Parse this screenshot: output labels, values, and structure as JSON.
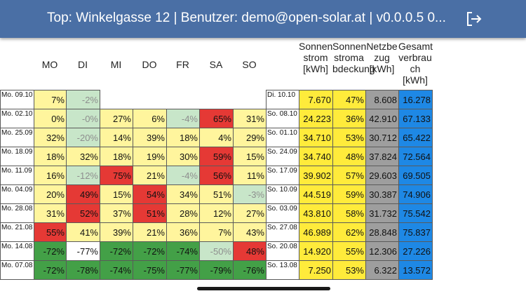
{
  "header": {
    "title": "Top: Winkelgasse 12 | Benutzer: demo@open-solar.at | v0.0.0.5  0...",
    "logout_icon": "logout-icon"
  },
  "day_headers": [
    "MO",
    "DI",
    "MI",
    "DO",
    "FR",
    "SA",
    "SO"
  ],
  "summary_headers": [
    "Sonnen\nstrom\n[kWh]",
    "Sonnen\nstroma\nbdeckung",
    "Netzbe\nzug\n[kWh]",
    "Gesamt\nverbrau\nch\n[kWh]"
  ],
  "colors": {
    "yellow": "#fff59d",
    "green_light": "#c8e6c9",
    "green": "#43a047",
    "red": "#e53935",
    "sun": "#ffeb3b",
    "grey": "#9e9e9e",
    "blue": "#1e88e5",
    "white": "#ffffff"
  },
  "rows": [
    {
      "week": "Mo. 09.10",
      "days": [
        {
          "v": "7%",
          "c": "yellow"
        },
        {
          "v": "-2%",
          "c": "green_light",
          "faded": true
        },
        null,
        null,
        null,
        null,
        null
      ],
      "sum_label": "Di. 10.10",
      "sun": "7.670",
      "cover": "47%",
      "grid": "8.608",
      "total": "16.278"
    },
    {
      "week": "Mo. 02.10",
      "days": [
        {
          "v": "0%",
          "c": "yellow"
        },
        {
          "v": "-0%",
          "c": "green_light",
          "faded": true
        },
        {
          "v": "27%",
          "c": "yellow"
        },
        {
          "v": "6%",
          "c": "yellow"
        },
        {
          "v": "-4%",
          "c": "green_light",
          "faded": true
        },
        {
          "v": "65%",
          "c": "red"
        },
        {
          "v": "31%",
          "c": "yellow"
        }
      ],
      "sum_label": "So. 08.10",
      "sun": "24.223",
      "cover": "36%",
      "grid": "42.910",
      "total": "67.133"
    },
    {
      "week": "Mo. 25.09",
      "days": [
        {
          "v": "32%",
          "c": "yellow"
        },
        {
          "v": "-20%",
          "c": "green_light",
          "faded": true
        },
        {
          "v": "14%",
          "c": "yellow"
        },
        {
          "v": "39%",
          "c": "yellow"
        },
        {
          "v": "18%",
          "c": "yellow"
        },
        {
          "v": "4%",
          "c": "yellow"
        },
        {
          "v": "29%",
          "c": "yellow"
        }
      ],
      "sum_label": "So. 01.10",
      "sun": "34.710",
      "cover": "53%",
      "grid": "30.712",
      "total": "65.422"
    },
    {
      "week": "Mo. 18.09",
      "days": [
        {
          "v": "18%",
          "c": "yellow"
        },
        {
          "v": "32%",
          "c": "yellow"
        },
        {
          "v": "18%",
          "c": "yellow"
        },
        {
          "v": "19%",
          "c": "yellow"
        },
        {
          "v": "30%",
          "c": "yellow"
        },
        {
          "v": "59%",
          "c": "red"
        },
        {
          "v": "15%",
          "c": "yellow"
        }
      ],
      "sum_label": "So. 24.09",
      "sun": "34.740",
      "cover": "48%",
      "grid": "37.824",
      "total": "72.564"
    },
    {
      "week": "Mo. 11.09",
      "days": [
        {
          "v": "16%",
          "c": "yellow"
        },
        {
          "v": "-12%",
          "c": "green_light",
          "faded": true
        },
        {
          "v": "75%",
          "c": "red"
        },
        {
          "v": "21%",
          "c": "yellow"
        },
        {
          "v": "-4%",
          "c": "green_light",
          "faded": true
        },
        {
          "v": "56%",
          "c": "red"
        },
        {
          "v": "11%",
          "c": "yellow"
        }
      ],
      "sum_label": "So. 17.09",
      "sun": "39.902",
      "cover": "57%",
      "grid": "29.603",
      "total": "69.505"
    },
    {
      "week": "Mo. 04.09",
      "days": [
        {
          "v": "20%",
          "c": "yellow"
        },
        {
          "v": "49%",
          "c": "red"
        },
        {
          "v": "15%",
          "c": "yellow"
        },
        {
          "v": "54%",
          "c": "red"
        },
        {
          "v": "34%",
          "c": "yellow"
        },
        {
          "v": "51%",
          "c": "yellow"
        },
        {
          "v": "-3%",
          "c": "green_light",
          "faded": true
        }
      ],
      "sum_label": "So. 10.09",
      "sun": "44.519",
      "cover": "59%",
      "grid": "30.387",
      "total": "74.906"
    },
    {
      "week": "Mo. 28.08",
      "days": [
        {
          "v": "31%",
          "c": "yellow"
        },
        {
          "v": "52%",
          "c": "red"
        },
        {
          "v": "37%",
          "c": "yellow"
        },
        {
          "v": "51%",
          "c": "red"
        },
        {
          "v": "28%",
          "c": "yellow"
        },
        {
          "v": "12%",
          "c": "yellow"
        },
        {
          "v": "27%",
          "c": "yellow"
        }
      ],
      "sum_label": "So. 03.09",
      "sun": "43.810",
      "cover": "58%",
      "grid": "31.732",
      "total": "75.542"
    },
    {
      "week": "Mo. 21.08",
      "days": [
        {
          "v": "55%",
          "c": "red"
        },
        {
          "v": "41%",
          "c": "yellow"
        },
        {
          "v": "39%",
          "c": "yellow"
        },
        {
          "v": "21%",
          "c": "yellow"
        },
        {
          "v": "36%",
          "c": "yellow"
        },
        {
          "v": "7%",
          "c": "yellow"
        },
        {
          "v": "43%",
          "c": "yellow"
        }
      ],
      "sum_label": "So. 27.08",
      "sun": "46.989",
      "cover": "62%",
      "grid": "28.848",
      "total": "75.837"
    },
    {
      "week": "Mo. 14.08",
      "days": [
        {
          "v": "-72%",
          "c": "green"
        },
        {
          "v": "-77%",
          "c": "white"
        },
        {
          "v": "-72%",
          "c": "green"
        },
        {
          "v": "-72%",
          "c": "green"
        },
        {
          "v": "-74%",
          "c": "green"
        },
        {
          "v": "-50%",
          "c": "green_light",
          "faded": true
        },
        {
          "v": "48%",
          "c": "red"
        }
      ],
      "sum_label": "So. 20.08",
      "sun": "14.920",
      "cover": "55%",
      "grid": "12.306",
      "total": "27.226"
    },
    {
      "week": "Mo. 07.08",
      "days": [
        {
          "v": "-72%",
          "c": "green"
        },
        {
          "v": "-78%",
          "c": "green"
        },
        {
          "v": "-74%",
          "c": "green"
        },
        {
          "v": "-75%",
          "c": "green"
        },
        {
          "v": "-77%",
          "c": "green"
        },
        {
          "v": "-79%",
          "c": "green"
        },
        {
          "v": "-76%",
          "c": "green"
        }
      ],
      "sum_label": "So. 13.08",
      "sun": "7.250",
      "cover": "53%",
      "grid": "6.322",
      "total": "13.572"
    }
  ]
}
